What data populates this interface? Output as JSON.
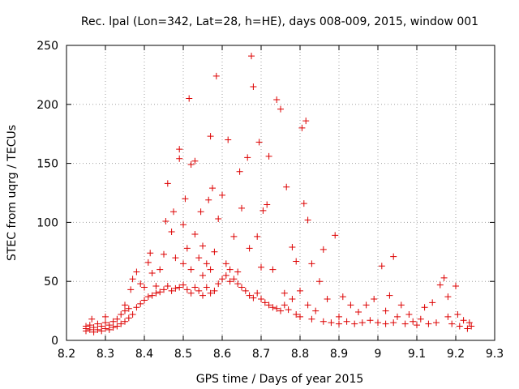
{
  "chart_data": {
    "type": "scatter",
    "title": "Rec. lpal (Lon=342, Lat=28, h=HE), days 008-009, 2015, window 001",
    "xlabel": "GPS time / Days of year 2015",
    "ylabel": "STEC from uqrg / TECUs",
    "xlim": [
      8.2,
      9.3
    ],
    "ylim": [
      0,
      250
    ],
    "x_ticks": [
      8.2,
      8.3,
      8.4,
      8.5,
      8.6,
      8.7,
      8.8,
      8.9,
      9.0,
      9.1,
      9.2,
      9.3
    ],
    "x_tick_labels": [
      "8.2",
      "8.3",
      "8.4",
      "8.5",
      "8.6",
      "8.7",
      "8.8",
      "8.9",
      "9",
      "9.1",
      "9.2",
      "9.3"
    ],
    "y_ticks": [
      0,
      50,
      100,
      150,
      200,
      250
    ],
    "y_tick_labels": [
      "0",
      "50",
      "100",
      "150",
      "200",
      "250"
    ],
    "marker": "+",
    "color": "#dd0000",
    "series": [
      {
        "name": "STEC",
        "points": [
          [
            8.25,
            8
          ],
          [
            8.25,
            10
          ],
          [
            8.25,
            12
          ],
          [
            8.26,
            9
          ],
          [
            8.26,
            13
          ],
          [
            8.265,
            18
          ],
          [
            8.27,
            7
          ],
          [
            8.27,
            11
          ],
          [
            8.28,
            9
          ],
          [
            8.28,
            14
          ],
          [
            8.29,
            8
          ],
          [
            8.29,
            12
          ],
          [
            8.3,
            10
          ],
          [
            8.3,
            15
          ],
          [
            8.3,
            20
          ],
          [
            8.31,
            9
          ],
          [
            8.31,
            13
          ],
          [
            8.32,
            11
          ],
          [
            8.32,
            16
          ],
          [
            8.33,
            12
          ],
          [
            8.33,
            18
          ],
          [
            8.34,
            14
          ],
          [
            8.34,
            22
          ],
          [
            8.35,
            16
          ],
          [
            8.35,
            25
          ],
          [
            8.35,
            30
          ],
          [
            8.36,
            19
          ],
          [
            8.36,
            27
          ],
          [
            8.365,
            43
          ],
          [
            8.37,
            52
          ],
          [
            8.37,
            22
          ],
          [
            8.38,
            28
          ],
          [
            8.38,
            58
          ],
          [
            8.39,
            31
          ],
          [
            8.39,
            48
          ],
          [
            8.4,
            34
          ],
          [
            8.4,
            45
          ],
          [
            8.41,
            37
          ],
          [
            8.41,
            66
          ],
          [
            8.415,
            74
          ],
          [
            8.42,
            38
          ],
          [
            8.42,
            57
          ],
          [
            8.43,
            40
          ],
          [
            8.43,
            46
          ],
          [
            8.44,
            41
          ],
          [
            8.44,
            60
          ],
          [
            8.45,
            43
          ],
          [
            8.45,
            73
          ],
          [
            8.455,
            101
          ],
          [
            8.46,
            133
          ],
          [
            8.46,
            46
          ],
          [
            8.47,
            42
          ],
          [
            8.47,
            92
          ],
          [
            8.475,
            109
          ],
          [
            8.48,
            44
          ],
          [
            8.48,
            70
          ],
          [
            8.49,
            45
          ],
          [
            8.49,
            154
          ],
          [
            8.49,
            162
          ],
          [
            8.5,
            47
          ],
          [
            8.5,
            65
          ],
          [
            8.5,
            98
          ],
          [
            8.505,
            120
          ],
          [
            8.51,
            43
          ],
          [
            8.51,
            78
          ],
          [
            8.515,
            205
          ],
          [
            8.52,
            40
          ],
          [
            8.52,
            60
          ],
          [
            8.52,
            149
          ],
          [
            8.53,
            45
          ],
          [
            8.53,
            90
          ],
          [
            8.53,
            152
          ],
          [
            8.54,
            42
          ],
          [
            8.54,
            70
          ],
          [
            8.545,
            109
          ],
          [
            8.55,
            38
          ],
          [
            8.55,
            55
          ],
          [
            8.55,
            80
          ],
          [
            8.56,
            45
          ],
          [
            8.56,
            65
          ],
          [
            8.565,
            119
          ],
          [
            8.57,
            40
          ],
          [
            8.57,
            60
          ],
          [
            8.57,
            173
          ],
          [
            8.575,
            129
          ],
          [
            8.58,
            42
          ],
          [
            8.58,
            75
          ],
          [
            8.585,
            224
          ],
          [
            8.59,
            48
          ],
          [
            8.59,
            103
          ],
          [
            8.6,
            52
          ],
          [
            8.6,
            123
          ],
          [
            8.61,
            55
          ],
          [
            8.61,
            65
          ],
          [
            8.615,
            170
          ],
          [
            8.62,
            50
          ],
          [
            8.62,
            60
          ],
          [
            8.63,
            52
          ],
          [
            8.63,
            88
          ],
          [
            8.64,
            48
          ],
          [
            8.64,
            58
          ],
          [
            8.645,
            143
          ],
          [
            8.65,
            45
          ],
          [
            8.65,
            112
          ],
          [
            8.66,
            42
          ],
          [
            8.665,
            155
          ],
          [
            8.67,
            38
          ],
          [
            8.67,
            78
          ],
          [
            8.675,
            241
          ],
          [
            8.68,
            36
          ],
          [
            8.68,
            215
          ],
          [
            8.69,
            40
          ],
          [
            8.69,
            88
          ],
          [
            8.695,
            168
          ],
          [
            8.7,
            35
          ],
          [
            8.7,
            62
          ],
          [
            8.705,
            110
          ],
          [
            8.71,
            32
          ],
          [
            8.715,
            115
          ],
          [
            8.72,
            30
          ],
          [
            8.72,
            156
          ],
          [
            8.73,
            28
          ],
          [
            8.73,
            60
          ],
          [
            8.74,
            27
          ],
          [
            8.74,
            204
          ],
          [
            8.75,
            25
          ],
          [
            8.75,
            196
          ],
          [
            8.76,
            30
          ],
          [
            8.76,
            40
          ],
          [
            8.765,
            130
          ],
          [
            8.77,
            26
          ],
          [
            8.78,
            35
          ],
          [
            8.78,
            79
          ],
          [
            8.79,
            22
          ],
          [
            8.79,
            67
          ],
          [
            8.8,
            20
          ],
          [
            8.8,
            42
          ],
          [
            8.805,
            180
          ],
          [
            8.81,
            116
          ],
          [
            8.815,
            186
          ],
          [
            8.82,
            102
          ],
          [
            8.82,
            30
          ],
          [
            8.83,
            65
          ],
          [
            8.83,
            18
          ],
          [
            8.84,
            25
          ],
          [
            8.85,
            50
          ],
          [
            8.86,
            16
          ],
          [
            8.86,
            77
          ],
          [
            8.87,
            35
          ],
          [
            8.88,
            15
          ],
          [
            8.89,
            89
          ],
          [
            8.9,
            14
          ],
          [
            8.9,
            20
          ],
          [
            8.91,
            37
          ],
          [
            8.92,
            16
          ],
          [
            8.93,
            30
          ],
          [
            8.94,
            14
          ],
          [
            8.95,
            24
          ],
          [
            8.96,
            15
          ],
          [
            8.97,
            30
          ],
          [
            8.98,
            17
          ],
          [
            8.99,
            35
          ],
          [
            9.0,
            15
          ],
          [
            9.01,
            63
          ],
          [
            9.02,
            25
          ],
          [
            9.02,
            14
          ],
          [
            9.03,
            38
          ],
          [
            9.04,
            71
          ],
          [
            9.04,
            15
          ],
          [
            9.05,
            20
          ],
          [
            9.06,
            30
          ],
          [
            9.07,
            14
          ],
          [
            9.08,
            22
          ],
          [
            9.09,
            16
          ],
          [
            9.1,
            13
          ],
          [
            9.11,
            18
          ],
          [
            9.12,
            28
          ],
          [
            9.13,
            14
          ],
          [
            9.14,
            32
          ],
          [
            9.15,
            15
          ],
          [
            9.16,
            47
          ],
          [
            9.17,
            53
          ],
          [
            9.18,
            20
          ],
          [
            9.18,
            37
          ],
          [
            9.19,
            14
          ],
          [
            9.2,
            46
          ],
          [
            9.205,
            22
          ],
          [
            9.21,
            12
          ],
          [
            9.22,
            17
          ],
          [
            9.23,
            10
          ],
          [
            9.235,
            15
          ],
          [
            9.24,
            12
          ]
        ]
      }
    ]
  }
}
